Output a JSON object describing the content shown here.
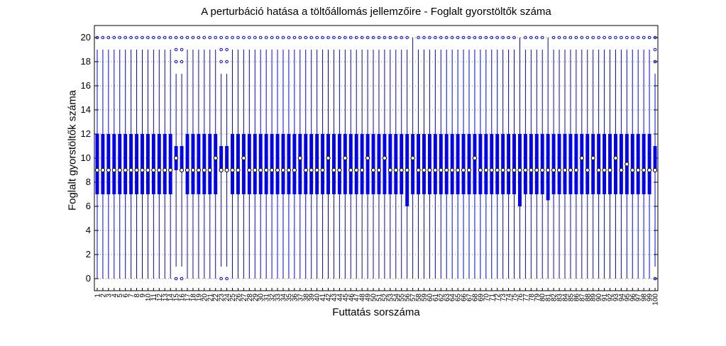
{
  "chart_data": {
    "type": "boxplot",
    "title": "A perturbáció hatása a töltőállomás jellemzőire - Foglalt gyorstöltők száma",
    "xlabel": "Futtatás sorszáma",
    "ylabel": "Foglalt gyorstöltők száma",
    "ylim": [
      -1,
      21
    ],
    "yticks": [
      0,
      2,
      4,
      6,
      8,
      10,
      12,
      14,
      16,
      18,
      20
    ],
    "grid": "horizontal-dotted",
    "box_color": "#0000ff",
    "median_marker_color": "#000000",
    "box_defaults": {
      "q1": 7,
      "q3": 12,
      "median": 9,
      "whisker_low": 0,
      "whisker_high": 19,
      "outliers": [
        20
      ]
    },
    "box_overrides": {
      "15": {
        "q1": 9,
        "q3": 11,
        "median": 10,
        "whisker_low": 1,
        "whisker_high": 17,
        "outliers": [
          0,
          18,
          19,
          20
        ]
      },
      "16": {
        "q1": 9,
        "q3": 11,
        "median": 9,
        "whisker_low": 1,
        "whisker_high": 17,
        "outliers": [
          0,
          18,
          19,
          20
        ]
      },
      "22": {
        "median": 10
      },
      "23": {
        "q1": 9,
        "q3": 11,
        "median": 9,
        "whisker_low": 1,
        "whisker_high": 17,
        "outliers": [
          0,
          18,
          19,
          20
        ]
      },
      "24": {
        "q1": 9,
        "q3": 11,
        "median": 9,
        "whisker_low": 1,
        "whisker_high": 17,
        "outliers": [
          0,
          18,
          19,
          20
        ]
      },
      "27": {
        "median": 10
      },
      "37": {
        "median": 10
      },
      "42": {
        "median": 10
      },
      "45": {
        "median": 10
      },
      "49": {
        "median": 10
      },
      "52": {
        "median": 10
      },
      "56": {
        "q1": 6
      },
      "57": {
        "median": 10,
        "whisker_high": 20,
        "outliers": []
      },
      "68": {
        "median": 10
      },
      "76": {
        "q1": 6,
        "whisker_high": 20,
        "outliers": []
      },
      "81": {
        "q1": 6.5,
        "whisker_high": 20,
        "outliers": []
      },
      "87": {
        "median": 10
      },
      "89": {
        "median": 10
      },
      "93": {
        "median": 10
      },
      "95": {
        "median": 9.5
      },
      "100": {
        "q1": 9,
        "q3": 11,
        "median": 9,
        "whisker_low": 1,
        "whisker_high": 17,
        "outliers": [
          0,
          18,
          19,
          20
        ]
      }
    },
    "num_runs": 100
  }
}
